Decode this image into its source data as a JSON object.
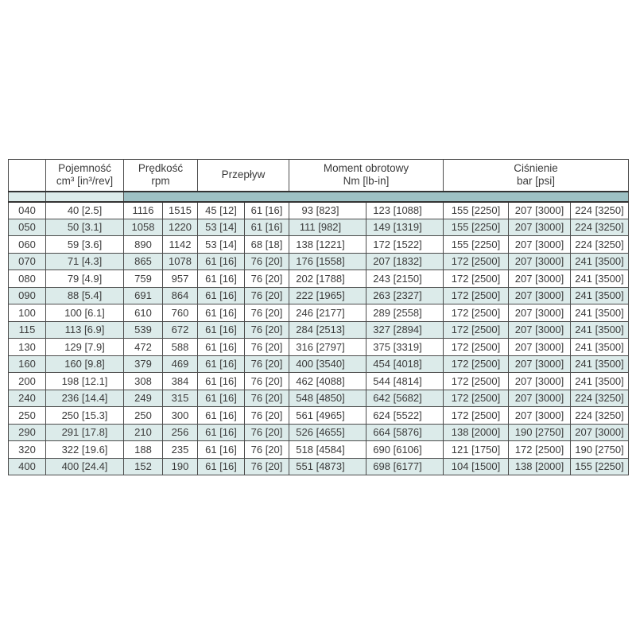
{
  "colors": {
    "band": "#9ec1c4",
    "row_alt": "#dcebea",
    "grid": "#4c4c4c",
    "text": "#3b3b3b",
    "background": "#ffffff"
  },
  "table": {
    "column_keys": [
      "code",
      "capacity",
      "speed_cont",
      "speed_max",
      "flow_cont",
      "flow_max",
      "torque_cont",
      "torque_max",
      "pressure_1",
      "pressure_2",
      "pressure_3"
    ],
    "headers": {
      "corner": "",
      "capacity": {
        "line1": "Pojemność",
        "line2": "cm³ [in³/rev]"
      },
      "speed": {
        "line1": "Prędkość",
        "line2": "rpm"
      },
      "flow": {
        "line1": "Przepływ"
      },
      "torque": {
        "line1": "Moment obrotowy",
        "line2": "Nm [lb-in]"
      },
      "pressure": {
        "line1": "Ciśnienie",
        "line2": "bar [psi]"
      }
    },
    "rows": [
      {
        "code": "040",
        "capacity": "40 [2.5]",
        "speed_cont": "1116",
        "speed_max": "1515",
        "flow_cont": "45 [12]",
        "flow_max": "61 [16]",
        "torque_cont": "93 [823]",
        "torque_max": "123 [1088]",
        "pressure_1": "155 [2250]",
        "pressure_2": "207 [3000]",
        "pressure_3": "224 [3250]"
      },
      {
        "code": "050",
        "capacity": "50 [3.1]",
        "speed_cont": "1058",
        "speed_max": "1220",
        "flow_cont": "53 [14]",
        "flow_max": "61 [16]",
        "torque_cont": "111 [982]",
        "torque_max": "149 [1319]",
        "pressure_1": "155 [2250]",
        "pressure_2": "207 [3000]",
        "pressure_3": "224 [3250]"
      },
      {
        "code": "060",
        "capacity": "59 [3.6]",
        "speed_cont": "890",
        "speed_max": "1142",
        "flow_cont": "53 [14]",
        "flow_max": "68 [18]",
        "torque_cont": "138 [1221]",
        "torque_max": "172 [1522]",
        "pressure_1": "155 [2250]",
        "pressure_2": "207 [3000]",
        "pressure_3": "224 [3250]"
      },
      {
        "code": "070",
        "capacity": "71 [4.3]",
        "speed_cont": "865",
        "speed_max": "1078",
        "flow_cont": "61 [16]",
        "flow_max": "76 [20]",
        "torque_cont": "176 [1558]",
        "torque_max": "207 [1832]",
        "pressure_1": "172 [2500]",
        "pressure_2": "207 [3000]",
        "pressure_3": "241 [3500]"
      },
      {
        "code": "080",
        "capacity": "79 [4.9]",
        "speed_cont": "759",
        "speed_max": "957",
        "flow_cont": "61 [16]",
        "flow_max": "76 [20]",
        "torque_cont": "202 [1788]",
        "torque_max": "243 [2150]",
        "pressure_1": "172 [2500]",
        "pressure_2": "207 [3000]",
        "pressure_3": "241 [3500]"
      },
      {
        "code": "090",
        "capacity": "88 [5.4]",
        "speed_cont": "691",
        "speed_max": "864",
        "flow_cont": "61 [16]",
        "flow_max": "76 [20]",
        "torque_cont": "222 [1965]",
        "torque_max": "263 [2327]",
        "pressure_1": "172 [2500]",
        "pressure_2": "207 [3000]",
        "pressure_3": "241 [3500]"
      },
      {
        "code": "100",
        "capacity": "100 [6.1]",
        "speed_cont": "610",
        "speed_max": "760",
        "flow_cont": "61 [16]",
        "flow_max": "76 [20]",
        "torque_cont": "246 [2177]",
        "torque_max": "289 [2558]",
        "pressure_1": "172 [2500]",
        "pressure_2": "207 [3000]",
        "pressure_3": "241 [3500]"
      },
      {
        "code": "115",
        "capacity": "113 [6.9]",
        "speed_cont": "539",
        "speed_max": "672",
        "flow_cont": "61 [16]",
        "flow_max": "76 [20]",
        "torque_cont": "284 [2513]",
        "torque_max": "327 [2894]",
        "pressure_1": "172 [2500]",
        "pressure_2": "207 [3000]",
        "pressure_3": "241 [3500]"
      },
      {
        "code": "130",
        "capacity": "129 [7.9]",
        "speed_cont": "472",
        "speed_max": "588",
        "flow_cont": "61 [16]",
        "flow_max": "76 [20]",
        "torque_cont": "316 [2797]",
        "torque_max": "375 [3319]",
        "pressure_1": "172 [2500]",
        "pressure_2": "207 [3000]",
        "pressure_3": "241 [3500]"
      },
      {
        "code": "160",
        "capacity": "160 [9.8]",
        "speed_cont": "379",
        "speed_max": "469",
        "flow_cont": "61 [16]",
        "flow_max": "76 [20]",
        "torque_cont": "400 [3540]",
        "torque_max": "454 [4018]",
        "pressure_1": "172 [2500]",
        "pressure_2": "207 [3000]",
        "pressure_3": "241 [3500]"
      },
      {
        "code": "200",
        "capacity": "198 [12.1]",
        "speed_cont": "308",
        "speed_max": "384",
        "flow_cont": "61 [16]",
        "flow_max": "76 [20]",
        "torque_cont": "462 [4088]",
        "torque_max": "544 [4814]",
        "pressure_1": "172 [2500]",
        "pressure_2": "207 [3000]",
        "pressure_3": "241 [3500]"
      },
      {
        "code": "240",
        "capacity": "236 [14.4]",
        "speed_cont": "249",
        "speed_max": "315",
        "flow_cont": "61 [16]",
        "flow_max": "76 [20]",
        "torque_cont": "548 [4850]",
        "torque_max": "642 [5682]",
        "pressure_1": "172 [2500]",
        "pressure_2": "207 [3000]",
        "pressure_3": "224 [3250]"
      },
      {
        "code": "250",
        "capacity": "250 [15.3]",
        "speed_cont": "250",
        "speed_max": "300",
        "flow_cont": "61 [16]",
        "flow_max": "76 [20]",
        "torque_cont": "561 [4965]",
        "torque_max": "624 [5522]",
        "pressure_1": "172 [2500]",
        "pressure_2": "207 [3000]",
        "pressure_3": "224 [3250]"
      },
      {
        "code": "290",
        "capacity": "291 [17.8]",
        "speed_cont": "210",
        "speed_max": "256",
        "flow_cont": "61 [16]",
        "flow_max": "76 [20]",
        "torque_cont": "526 [4655]",
        "torque_max": "664 [5876]",
        "pressure_1": "138 [2000]",
        "pressure_2": "190 [2750]",
        "pressure_3": "207 [3000]"
      },
      {
        "code": "320",
        "capacity": "322 [19.6]",
        "speed_cont": "188",
        "speed_max": "235",
        "flow_cont": "61 [16]",
        "flow_max": "76 [20]",
        "torque_cont": "518 [4584]",
        "torque_max": "690 [6106]",
        "pressure_1": "121 [1750]",
        "pressure_2": "172 [2500]",
        "pressure_3": "190 [2750]"
      },
      {
        "code": "400",
        "capacity": "400 [24.4]",
        "speed_cont": "152",
        "speed_max": "190",
        "flow_cont": "61 [16]",
        "flow_max": "76 [20]",
        "torque_cont": "551 [4873]",
        "torque_max": "698 [6177]",
        "pressure_1": "104 [1500]",
        "pressure_2": "138 [2000]",
        "pressure_3": "155 [2250]"
      }
    ]
  }
}
